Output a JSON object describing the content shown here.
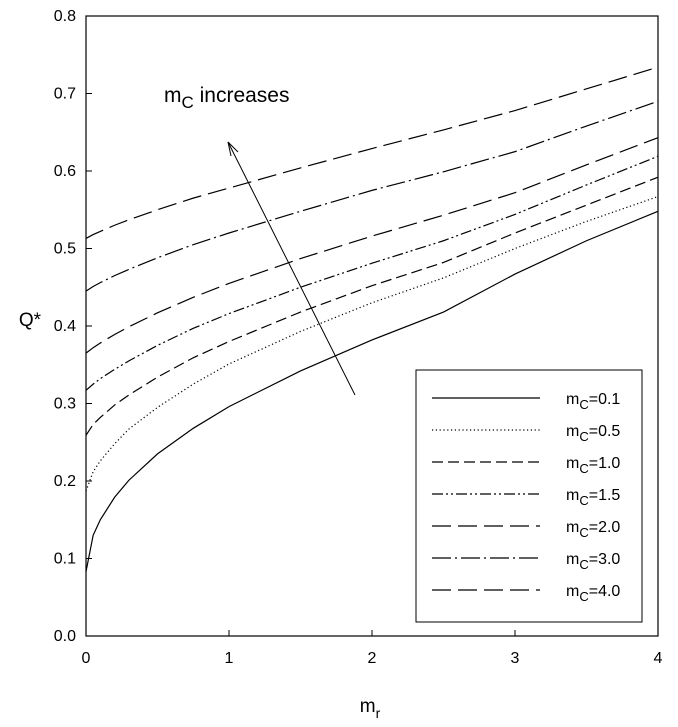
{
  "chart_data": {
    "type": "line",
    "xlabel_main": "m",
    "xlabel_sub": "r",
    "ylabel": "Q*",
    "xlim": [
      0,
      4
    ],
    "ylim": [
      0.0,
      0.8
    ],
    "xticks": [
      "0",
      "1",
      "2",
      "3",
      "4"
    ],
    "yticks": [
      "0.0",
      "0.1",
      "0.2",
      "0.3",
      "0.4",
      "0.5",
      "0.6",
      "0.7",
      "0.8"
    ],
    "grid": false,
    "legend_position": "bottom-right",
    "annotation": {
      "main": "m",
      "sub": "C",
      "rest": " increases"
    },
    "x": [
      0,
      0.05,
      0.1,
      0.2,
      0.3,
      0.5,
      0.75,
      1.0,
      1.5,
      2.0,
      2.5,
      3.0,
      3.5,
      4.0
    ],
    "series": [
      {
        "name": "mC=0.1",
        "legend_main": "m",
        "legend_sub": "C",
        "legend_rest": "=0.1",
        "dash": "solid",
        "values": [
          0.083,
          0.13,
          0.15,
          0.179,
          0.201,
          0.235,
          0.268,
          0.296,
          0.342,
          0.382,
          0.418,
          0.467,
          0.51,
          0.548
        ]
      },
      {
        "name": "mC=0.5",
        "legend_main": "m",
        "legend_sub": "C",
        "legend_rest": "=0.5",
        "dash": "dot",
        "values": [
          0.187,
          0.212,
          0.226,
          0.248,
          0.267,
          0.295,
          0.325,
          0.351,
          0.393,
          0.43,
          0.462,
          0.5,
          0.535,
          0.567
        ]
      },
      {
        "name": "mC=1.0",
        "legend_main": "m",
        "legend_sub": "C",
        "legend_rest": "=1.0",
        "dash": "dash",
        "values": [
          0.259,
          0.273,
          0.282,
          0.298,
          0.311,
          0.334,
          0.359,
          0.38,
          0.418,
          0.452,
          0.482,
          0.52,
          0.556,
          0.592
        ]
      },
      {
        "name": "mC=1.5",
        "legend_main": "m",
        "legend_sub": "C",
        "legend_rest": "=1.5",
        "dash": "dashdotdot",
        "values": [
          0.317,
          0.325,
          0.332,
          0.344,
          0.355,
          0.375,
          0.397,
          0.416,
          0.45,
          0.481,
          0.51,
          0.544,
          0.582,
          0.619
        ]
      },
      {
        "name": "mC=2.0",
        "legend_main": "m",
        "legend_sub": "C",
        "legend_rest": "=2.0",
        "dash": "longdash",
        "values": [
          0.365,
          0.372,
          0.378,
          0.389,
          0.399,
          0.417,
          0.437,
          0.455,
          0.487,
          0.516,
          0.543,
          0.572,
          0.608,
          0.643
        ]
      },
      {
        "name": "mC=3.0",
        "legend_main": "m",
        "legend_sub": "C",
        "legend_rest": "=3.0",
        "dash": "longdashdot",
        "values": [
          0.445,
          0.451,
          0.456,
          0.465,
          0.473,
          0.488,
          0.505,
          0.52,
          0.548,
          0.575,
          0.599,
          0.625,
          0.658,
          0.69
        ]
      },
      {
        "name": "mC=4.0",
        "legend_main": "m",
        "legend_sub": "C",
        "legend_rest": "=4.0",
        "dash": "longdash",
        "values": [
          0.513,
          0.518,
          0.522,
          0.53,
          0.537,
          0.55,
          0.565,
          0.578,
          0.604,
          0.629,
          0.653,
          0.678,
          0.706,
          0.734
        ]
      }
    ]
  }
}
